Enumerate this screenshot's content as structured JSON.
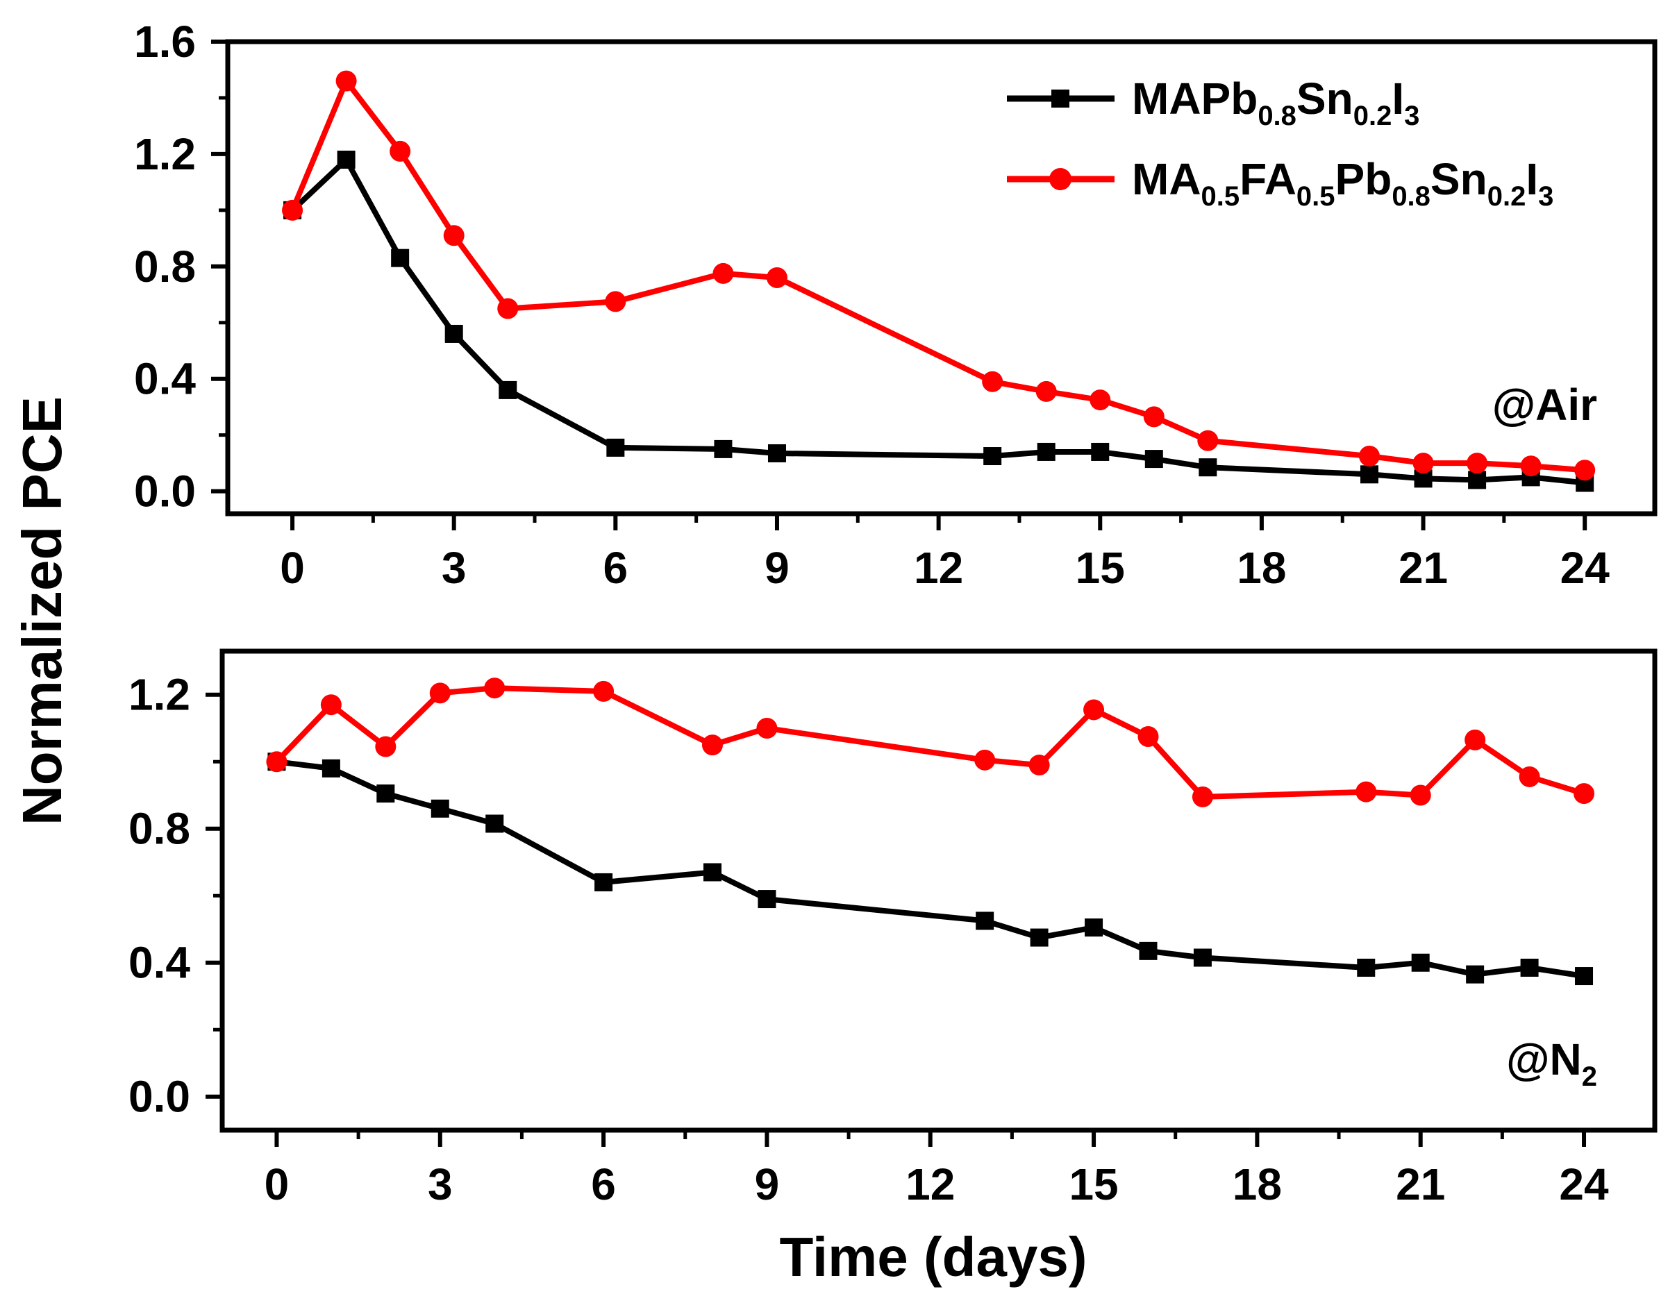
{
  "chart_data": {
    "type": "line",
    "ylabel": "Normalized PCE",
    "xlabel": "Time (days)",
    "legend": {
      "placement": "top-right of upper panel",
      "entries": [
        {
          "parts": [
            {
              "t": "MAPb"
            },
            {
              "t": "0.8",
              "sub": true
            },
            {
              "t": "Sn"
            },
            {
              "t": "0.2",
              "sub": true
            },
            {
              "t": "I"
            },
            {
              "t": "3",
              "sub": true
            }
          ],
          "color": "#000000",
          "marker": "square"
        },
        {
          "parts": [
            {
              "t": "MA"
            },
            {
              "t": "0.5",
              "sub": true
            },
            {
              "t": "FA"
            },
            {
              "t": "0.5",
              "sub": true
            },
            {
              "t": "Pb"
            },
            {
              "t": "0.8",
              "sub": true
            },
            {
              "t": "Sn"
            },
            {
              "t": "0.2",
              "sub": true
            },
            {
              "t": "I"
            },
            {
              "t": "3",
              "sub": true
            }
          ],
          "color": "#ff0000",
          "marker": "circle"
        }
      ]
    },
    "panels": [
      {
        "condition": [
          {
            "t": "@Air"
          }
        ],
        "xlim": [
          -1.2,
          25.3
        ],
        "ylim": [
          -0.08,
          1.6
        ],
        "xticks": [
          0,
          3,
          6,
          9,
          12,
          15,
          18,
          21,
          24
        ],
        "xtick_labels": [
          "0",
          "3",
          "6",
          "9",
          "12",
          "15",
          "18",
          "21",
          "24"
        ],
        "yticks": [
          0.0,
          0.4,
          0.8,
          1.2,
          1.6
        ],
        "ytick_labels": [
          "0.0",
          "0.4",
          "0.8",
          "1.2",
          "1.6"
        ],
        "series": [
          {
            "color": "#000000",
            "marker": "square",
            "x": [
              0,
              1,
              2,
              3,
              4,
              6,
              8,
              9,
              13,
              14,
              15,
              16,
              17,
              20,
              21,
              22,
              23,
              24
            ],
            "y": [
              1.0,
              1.18,
              0.83,
              0.56,
              0.36,
              0.155,
              0.15,
              0.135,
              0.125,
              0.14,
              0.14,
              0.115,
              0.085,
              0.06,
              0.045,
              0.04,
              0.05,
              0.03
            ]
          },
          {
            "color": "#ff0000",
            "marker": "circle",
            "x": [
              0,
              1,
              2,
              3,
              4,
              6,
              8,
              9,
              13,
              14,
              15,
              16,
              17,
              20,
              21,
              22,
              23,
              24
            ],
            "y": [
              1.0,
              1.46,
              1.21,
              0.91,
              0.65,
              0.675,
              0.775,
              0.76,
              0.39,
              0.355,
              0.325,
              0.265,
              0.18,
              0.125,
              0.1,
              0.1,
              0.09,
              0.075
            ]
          }
        ]
      },
      {
        "condition": [
          {
            "t": "@N"
          },
          {
            "t": "2",
            "sub": true
          }
        ],
        "xlim": [
          -1.0,
          25.3
        ],
        "ylim": [
          -0.1,
          1.33
        ],
        "xticks": [
          0,
          3,
          6,
          9,
          12,
          15,
          18,
          21,
          24
        ],
        "xtick_labels": [
          "0",
          "3",
          "6",
          "9",
          "12",
          "15",
          "18",
          "21",
          "24"
        ],
        "yticks": [
          0.0,
          0.4,
          0.8,
          1.2
        ],
        "ytick_labels": [
          "0.0",
          "0.4",
          "0.8",
          "1.2"
        ],
        "series": [
          {
            "color": "#000000",
            "marker": "square",
            "x": [
              0,
              1,
              2,
              3,
              4,
              6,
              8,
              9,
              13,
              14,
              15,
              16,
              17,
              20,
              21,
              22,
              23,
              24
            ],
            "y": [
              1.0,
              0.98,
              0.905,
              0.86,
              0.815,
              0.64,
              0.67,
              0.59,
              0.525,
              0.475,
              0.505,
              0.435,
              0.415,
              0.385,
              0.4,
              0.365,
              0.385,
              0.36
            ]
          },
          {
            "color": "#ff0000",
            "marker": "circle",
            "x": [
              0,
              1,
              2,
              3,
              4,
              6,
              8,
              9,
              13,
              14,
              15,
              16,
              17,
              20,
              21,
              22,
              23,
              24
            ],
            "y": [
              1.0,
              1.17,
              1.045,
              1.205,
              1.22,
              1.21,
              1.05,
              1.1,
              1.005,
              0.99,
              1.155,
              1.075,
              0.895,
              0.91,
              0.9,
              1.065,
              0.955,
              0.905
            ]
          }
        ]
      }
    ]
  }
}
